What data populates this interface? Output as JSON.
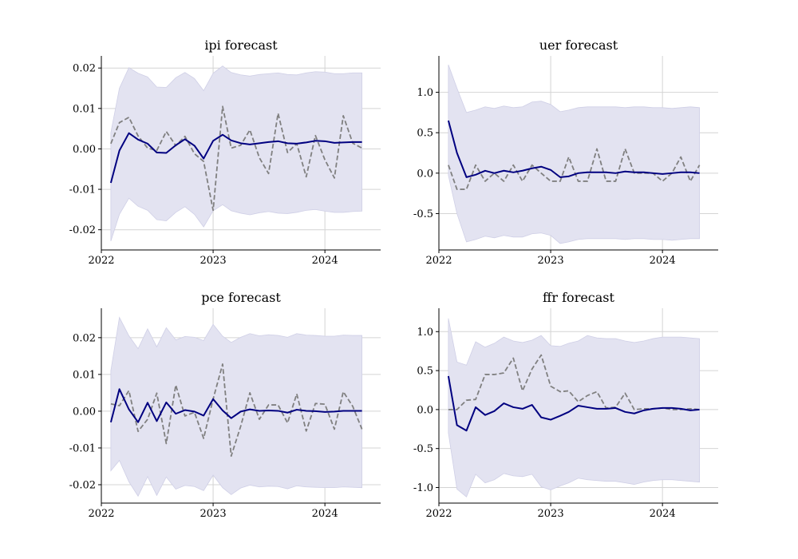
{
  "chart_data": [
    {
      "type": "line",
      "title": "ipi forecast",
      "xlabel": "",
      "ylabel": "",
      "xlim": [
        "2022-01-01",
        "2024-07-01"
      ],
      "ylim": [
        -0.025,
        0.023
      ],
      "x_ticks": [
        {
          "value": "2022-01-01",
          "label": "2022"
        },
        {
          "value": "2023-01-01",
          "label": "2023"
        },
        {
          "value": "2024-01-01",
          "label": "2024"
        }
      ],
      "y_ticks": [
        {
          "value": 0.02,
          "label": "0.02"
        },
        {
          "value": 0.01,
          "label": "0.01"
        },
        {
          "value": 0.0,
          "label": "0.00"
        },
        {
          "value": -0.01,
          "label": "-0.01"
        },
        {
          "value": -0.02,
          "label": "-0.02"
        }
      ],
      "grid": true,
      "series": [
        {
          "style": "band",
          "color": "#e3e3f1",
          "upper": [
            0.004,
            0.015,
            0.0201,
            0.0187,
            0.0178,
            0.0153,
            0.0152,
            0.0176,
            0.0189,
            0.0174,
            0.0144,
            0.0187,
            0.0205,
            0.0189,
            0.0183,
            0.018,
            0.0184,
            0.0186,
            0.0188,
            0.0184,
            0.0183,
            0.0188,
            0.0191,
            0.019,
            0.0186,
            0.0186,
            0.0188,
            0.0188
          ],
          "lower": [
            -0.0228,
            -0.0162,
            -0.0122,
            -0.0142,
            -0.0152,
            -0.0175,
            -0.0178,
            -0.0157,
            -0.0143,
            -0.0162,
            -0.0193,
            -0.0153,
            -0.0138,
            -0.0153,
            -0.0159,
            -0.0163,
            -0.0158,
            -0.0155,
            -0.0159,
            -0.016,
            -0.0157,
            -0.0152,
            -0.015,
            -0.0154,
            -0.0157,
            -0.0157,
            -0.0155,
            -0.0154
          ]
        },
        {
          "style": "dashed",
          "color": "#808080",
          "values": [
            0.0013,
            0.0065,
            0.0078,
            0.0032,
            0.0002,
            -0.0004,
            0.0043,
            0.0008,
            0.0031,
            -0.0012,
            -0.0031,
            -0.0152,
            0.0105,
            0.0002,
            0.0009,
            0.0047,
            -0.0022,
            -0.0061,
            0.0088,
            -0.0009,
            0.0013,
            -0.0069,
            0.0033,
            -0.0027,
            -0.0072,
            0.0082,
            0.0014,
            0.0002
          ]
        },
        {
          "style": "solid",
          "color": "#000080",
          "values": [
            -0.0084,
            -0.0004,
            0.0039,
            0.0023,
            0.0013,
            -0.0009,
            -0.001,
            0.0009,
            0.0024,
            0.0008,
            -0.0024,
            0.002,
            0.0035,
            0.0021,
            0.0014,
            0.0011,
            0.0014,
            0.0017,
            0.0019,
            0.0014,
            0.0013,
            0.0016,
            0.002,
            0.0019,
            0.0015,
            0.0016,
            0.0017,
            0.0017
          ]
        }
      ]
    },
    {
      "type": "line",
      "title": "uer forecast",
      "xlabel": "",
      "ylabel": "",
      "xlim": [
        "2022-01-01",
        "2024-07-01"
      ],
      "ylim": [
        -0.95,
        1.45
      ],
      "x_ticks": [
        {
          "value": "2022-01-01",
          "label": "2022"
        },
        {
          "value": "2023-01-01",
          "label": "2023"
        },
        {
          "value": "2024-01-01",
          "label": "2024"
        }
      ],
      "y_ticks": [
        {
          "value": 1.0,
          "label": "1.0"
        },
        {
          "value": 0.5,
          "label": "0.5"
        },
        {
          "value": 0.0,
          "label": "0.0"
        },
        {
          "value": -0.5,
          "label": "-0.5"
        }
      ],
      "grid": true,
      "series": [
        {
          "style": "band",
          "color": "#e3e3f1",
          "upper": [
            1.34,
            1.05,
            0.75,
            0.78,
            0.82,
            0.8,
            0.83,
            0.81,
            0.82,
            0.88,
            0.89,
            0.85,
            0.76,
            0.78,
            0.81,
            0.82,
            0.82,
            0.82,
            0.82,
            0.81,
            0.82,
            0.82,
            0.81,
            0.81,
            0.8,
            0.81,
            0.82,
            0.81
          ],
          "lower": [
            -0.03,
            -0.5,
            -0.85,
            -0.82,
            -0.78,
            -0.8,
            -0.77,
            -0.79,
            -0.79,
            -0.75,
            -0.74,
            -0.77,
            -0.87,
            -0.85,
            -0.82,
            -0.81,
            -0.81,
            -0.81,
            -0.81,
            -0.82,
            -0.81,
            -0.81,
            -0.82,
            -0.82,
            -0.83,
            -0.82,
            -0.81,
            -0.81
          ]
        },
        {
          "style": "dashed",
          "color": "#808080",
          "values": [
            0.1,
            -0.2,
            -0.2,
            0.1,
            -0.1,
            0.0,
            -0.1,
            0.1,
            -0.1,
            0.1,
            0.0,
            -0.1,
            -0.1,
            0.2,
            -0.1,
            -0.1,
            0.3,
            -0.1,
            -0.1,
            0.3,
            0.0,
            0.0,
            0.0,
            -0.1,
            0.0,
            0.2,
            -0.1,
            0.1
          ]
        },
        {
          "style": "solid",
          "color": "#000080",
          "values": [
            0.65,
            0.25,
            -0.05,
            -0.02,
            0.03,
            0.0,
            0.03,
            0.01,
            0.03,
            0.06,
            0.08,
            0.04,
            -0.05,
            -0.04,
            0.0,
            0.01,
            0.01,
            0.01,
            0.0,
            0.02,
            0.01,
            0.01,
            0.0,
            -0.01,
            0.0,
            0.01,
            0.01,
            0.0
          ]
        }
      ]
    },
    {
      "type": "line",
      "title": "pce forecast",
      "xlabel": "",
      "ylabel": "",
      "xlim": [
        "2022-01-01",
        "2024-07-01"
      ],
      "ylim": [
        -0.025,
        0.028
      ],
      "x_ticks": [
        {
          "value": "2022-01-01",
          "label": "2022"
        },
        {
          "value": "2023-01-01",
          "label": "2023"
        },
        {
          "value": "2024-01-01",
          "label": "2024"
        }
      ],
      "y_ticks": [
        {
          "value": 0.02,
          "label": "0.02"
        },
        {
          "value": 0.01,
          "label": "0.01"
        },
        {
          "value": 0.0,
          "label": "0.00"
        },
        {
          "value": -0.01,
          "label": "-0.01"
        },
        {
          "value": -0.02,
          "label": "-0.02"
        }
      ],
      "grid": true,
      "series": [
        {
          "style": "band",
          "color": "#e3e3f1",
          "upper": [
            0.011,
            0.0255,
            0.0205,
            0.017,
            0.0224,
            0.0175,
            0.0227,
            0.0194,
            0.0203,
            0.0201,
            0.0192,
            0.0236,
            0.0204,
            0.0187,
            0.0201,
            0.0211,
            0.0205,
            0.0208,
            0.0206,
            0.0201,
            0.0211,
            0.0207,
            0.0206,
            0.0204,
            0.0204,
            0.0207,
            0.0206,
            0.0206
          ],
          "lower": [
            -0.0162,
            -0.0134,
            -0.0192,
            -0.0231,
            -0.0178,
            -0.0229,
            -0.0179,
            -0.0212,
            -0.0202,
            -0.0205,
            -0.0216,
            -0.0174,
            -0.0208,
            -0.0227,
            -0.0209,
            -0.0201,
            -0.0206,
            -0.0204,
            -0.0205,
            -0.0211,
            -0.0203,
            -0.0206,
            -0.0207,
            -0.0208,
            -0.0208,
            -0.0206,
            -0.0207,
            -0.0208
          ]
        },
        {
          "style": "dashed",
          "color": "#808080",
          "values": [
            0.002,
            0.0015,
            0.0056,
            -0.0055,
            -0.0022,
            0.0049,
            -0.0088,
            0.0071,
            -0.0013,
            -0.0003,
            -0.0074,
            0.0033,
            0.0128,
            -0.0122,
            -0.0041,
            0.005,
            -0.0022,
            0.0017,
            0.0017,
            -0.0032,
            0.0047,
            -0.0054,
            0.0021,
            0.0019,
            -0.0049,
            0.0053,
            0.0013,
            -0.0049
          ]
        },
        {
          "style": "solid",
          "color": "#000080",
          "values": [
            -0.003,
            0.006,
            0.0005,
            -0.003,
            0.0023,
            -0.0027,
            0.0024,
            -0.0007,
            0.0003,
            -0.0001,
            -0.0012,
            0.0033,
            0.0002,
            -0.0019,
            -0.0001,
            0.0005,
            0.0001,
            0.0002,
            0.0001,
            -0.0004,
            0.0004,
            0.0001,
            0.0,
            -0.0002,
            -0.0001,
            0.0001,
            0.0001,
            0.0001
          ]
        }
      ]
    },
    {
      "type": "line",
      "title": "ffr forecast",
      "xlabel": "",
      "ylabel": "",
      "xlim": [
        "2022-01-01",
        "2024-07-01"
      ],
      "ylim": [
        -1.2,
        1.3
      ],
      "x_ticks": [
        {
          "value": "2022-01-01",
          "label": "2022"
        },
        {
          "value": "2023-01-01",
          "label": "2023"
        },
        {
          "value": "2024-01-01",
          "label": "2024"
        }
      ],
      "y_ticks": [
        {
          "value": 1.0,
          "label": "1.0"
        },
        {
          "value": 0.5,
          "label": "0.5"
        },
        {
          "value": 0.0,
          "label": "0.0"
        },
        {
          "value": -0.5,
          "label": "-0.5"
        },
        {
          "value": -1.0,
          "label": "-1.0"
        }
      ],
      "grid": true,
      "series": [
        {
          "style": "band",
          "color": "#e3e3f1",
          "upper": [
            1.17,
            0.61,
            0.57,
            0.87,
            0.8,
            0.85,
            0.93,
            0.88,
            0.86,
            0.89,
            0.95,
            0.82,
            0.81,
            0.85,
            0.88,
            0.95,
            0.92,
            0.91,
            0.91,
            0.88,
            0.86,
            0.88,
            0.91,
            0.93,
            0.93,
            0.93,
            0.92,
            0.91
          ],
          "lower": [
            -0.3,
            -1.02,
            -1.12,
            -0.83,
            -0.94,
            -0.9,
            -0.82,
            -0.85,
            -0.86,
            -0.83,
            -0.99,
            -1.03,
            -0.98,
            -0.94,
            -0.88,
            -0.9,
            -0.91,
            -0.92,
            -0.92,
            -0.94,
            -0.96,
            -0.93,
            -0.91,
            -0.9,
            -0.9,
            -0.91,
            -0.92,
            -0.93
          ]
        },
        {
          "style": "dashed",
          "color": "#808080",
          "values": [
            0.0,
            0.0,
            0.12,
            0.13,
            0.45,
            0.45,
            0.47,
            0.66,
            0.24,
            0.52,
            0.7,
            0.3,
            0.23,
            0.24,
            0.1,
            0.18,
            0.23,
            0.02,
            0.03,
            0.21,
            0.0,
            0.01,
            0.01,
            0.02,
            0.0,
            0.0,
            0.01,
            0.0
          ]
        },
        {
          "style": "solid",
          "color": "#000080",
          "values": [
            0.43,
            -0.2,
            -0.27,
            0.03,
            -0.07,
            -0.02,
            0.08,
            0.03,
            0.01,
            0.06,
            -0.1,
            -0.13,
            -0.08,
            -0.03,
            0.05,
            0.03,
            0.01,
            0.01,
            0.02,
            -0.03,
            -0.05,
            -0.01,
            0.01,
            0.02,
            0.02,
            0.01,
            -0.01,
            0.0
          ]
        }
      ]
    }
  ]
}
